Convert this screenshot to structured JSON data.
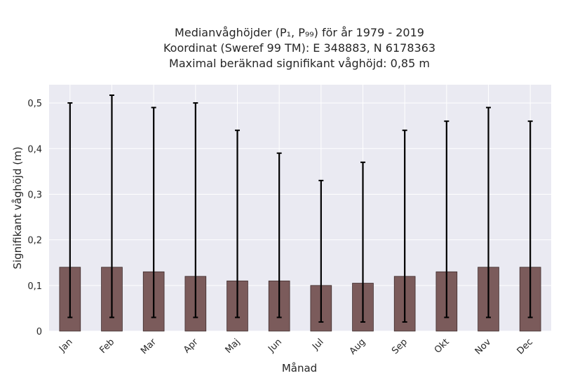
{
  "chart_data": {
    "type": "bar",
    "title_lines": [
      "Medianvåghöjder (P₁, P₉₉) för år 1979 - 2019",
      "Koordinat (Sweref 99 TM): E 348883, N 6178363",
      "Maximal beräknad signifikant våghöjd: 0,85 m"
    ],
    "xlabel": "Månad",
    "ylabel": "Signifikant våghöjd (m)",
    "categories": [
      "Jan",
      "Feb",
      "Mar",
      "Apr",
      "Maj",
      "Jun",
      "Jul",
      "Aug",
      "Sep",
      "Okt",
      "Nov",
      "Dec"
    ],
    "values": [
      0.14,
      0.14,
      0.13,
      0.12,
      0.11,
      0.11,
      0.1,
      0.105,
      0.12,
      0.13,
      0.14,
      0.14
    ],
    "p1": [
      0.03,
      0.03,
      0.03,
      0.03,
      0.03,
      0.03,
      0.02,
      0.02,
      0.02,
      0.03,
      0.03,
      0.03
    ],
    "p99": [
      0.5,
      0.517,
      0.49,
      0.5,
      0.44,
      0.39,
      0.33,
      0.37,
      0.44,
      0.46,
      0.49,
      0.46
    ],
    "ylim": [
      0,
      0.54
    ],
    "yticks": [
      0,
      0.1,
      0.2,
      0.3,
      0.4,
      0.5
    ],
    "ytick_labels": [
      "0",
      "0,1",
      "0,2",
      "0,3",
      "0,4",
      "0,5"
    ],
    "grid": true,
    "colors": {
      "bar": "#7b5b5b",
      "bar_edge": "#3d2b2b",
      "error_bar": "#000000",
      "plot_bg": "#eaeaf2",
      "grid": "#ffffff"
    }
  }
}
